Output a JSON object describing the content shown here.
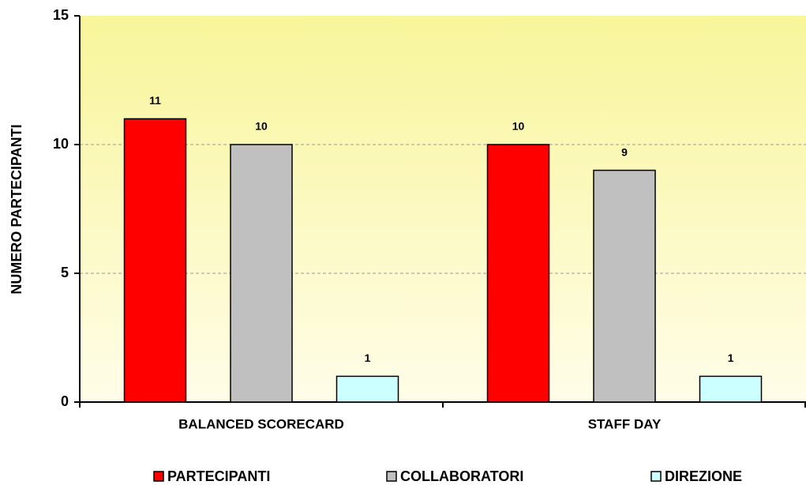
{
  "chart_data": {
    "type": "bar",
    "categories": [
      "BALANCED SCORECARD",
      "STAFF DAY"
    ],
    "y_label": "NUMERO PARTECIPANTI",
    "series": [
      {
        "name": "PARTECIPANTI",
        "color": "#ff0000",
        "values": [
          11,
          10
        ]
      },
      {
        "name": "COLLABORATORI",
        "color": "#c0c0c0",
        "values": [
          10,
          9
        ]
      },
      {
        "name": "DIREZIONE",
        "color": "#ccffff",
        "values": [
          1,
          1
        ]
      }
    ],
    "ylim": [
      0,
      15
    ],
    "yticks": [
      0,
      5,
      10,
      15
    ],
    "grid": true,
    "legend": "bottom"
  }
}
